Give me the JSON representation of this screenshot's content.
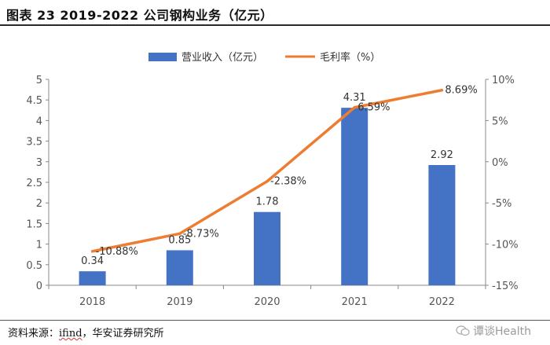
{
  "page": {
    "title": "图表 23 2019-2022 公司钢构业务（亿元）",
    "source_prefix": "资料来源：",
    "source_link": "ifind",
    "source_suffix": "，华安证券研究所",
    "watermark": "谭谈Health"
  },
  "chart_data": {
    "type": "bar",
    "categories": [
      "2018",
      "2019",
      "2020",
      "2021",
      "2022"
    ],
    "series": [
      {
        "name": "营业收入（亿元）",
        "type": "bar",
        "axis": "left",
        "color": "#4472C4",
        "values": [
          0.34,
          0.85,
          1.78,
          4.31,
          2.92
        ],
        "labels": [
          "0.34",
          "0.85",
          "1.78",
          "4.31",
          "2.92"
        ]
      },
      {
        "name": "毛利率（%）",
        "type": "line",
        "axis": "right",
        "color": "#ED7D31",
        "values": [
          -10.88,
          -8.73,
          -2.38,
          6.59,
          8.69
        ],
        "labels": [
          "-10.88%",
          "-8.73%",
          "-2.38%",
          "6.59%",
          "8.69%"
        ]
      }
    ],
    "y_left": {
      "min": 0,
      "max": 5,
      "ticks": [
        "0",
        "0.5",
        "1",
        "1.5",
        "2",
        "2.5",
        "3",
        "3.5",
        "4",
        "4.5",
        "5"
      ]
    },
    "y_right": {
      "min": -15,
      "max": 10,
      "ticks": [
        "-15%",
        "-10%",
        "-5%",
        "0%",
        "5%",
        "10%"
      ]
    },
    "legend": "top-center",
    "grid": false
  }
}
